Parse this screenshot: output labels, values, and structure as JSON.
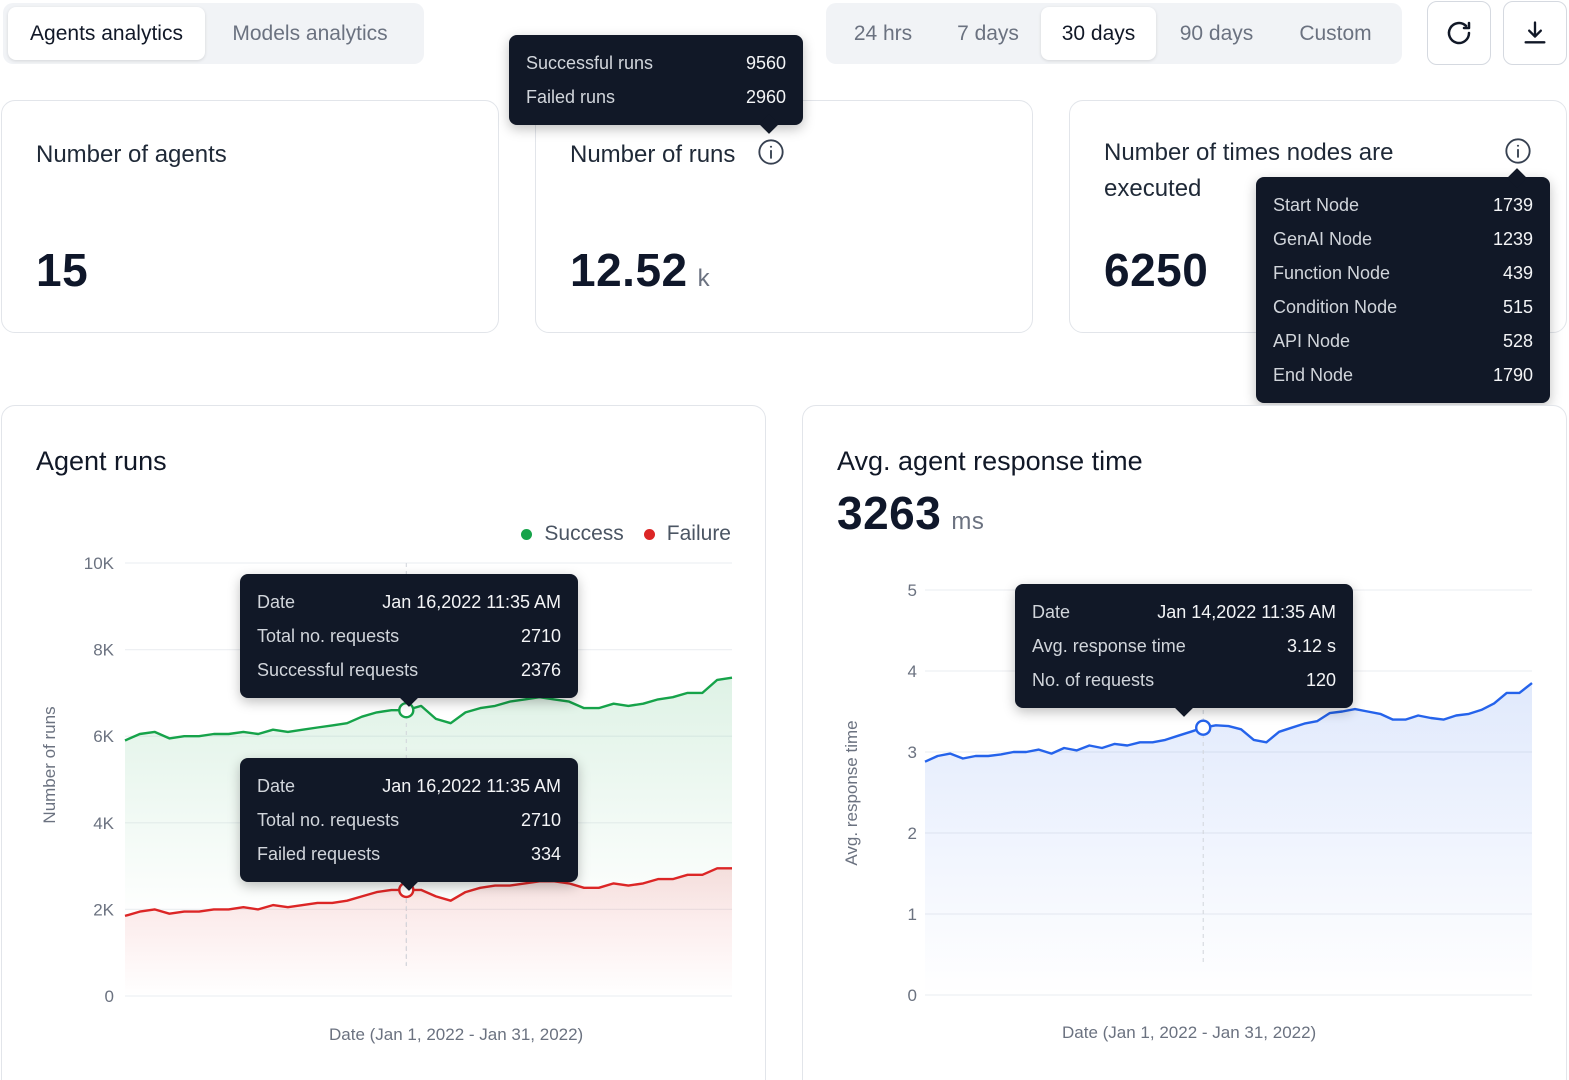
{
  "tabs": {
    "analytics": [
      {
        "label": "Agents analytics",
        "active": true
      },
      {
        "label": "Models analytics",
        "active": false
      }
    ],
    "ranges": [
      {
        "label": "24 hrs",
        "active": false
      },
      {
        "label": "7 days",
        "active": false
      },
      {
        "label": "30 days",
        "active": true
      },
      {
        "label": "90 days",
        "active": false
      },
      {
        "label": "Custom",
        "active": false
      }
    ]
  },
  "toolbar": {
    "refresh_icon": "refresh-icon",
    "download_icon": "download-icon"
  },
  "stats": {
    "agents": {
      "title": "Number of agents",
      "value": "15"
    },
    "runs": {
      "title": "Number of runs",
      "value": "12.52",
      "unit": "k",
      "tooltip": [
        {
          "label": "Successful runs",
          "value": "9560"
        },
        {
          "label": "Failed runs",
          "value": "2960"
        }
      ]
    },
    "nodes": {
      "title_line1": "Number of times nodes are",
      "title_line2": "executed",
      "value": "6250",
      "tooltip": [
        {
          "label": "Start Node",
          "value": "1739"
        },
        {
          "label": "GenAI Node",
          "value": "1239"
        },
        {
          "label": "Function Node",
          "value": "439"
        },
        {
          "label": "Condition Node",
          "value": "515"
        },
        {
          "label": "API Node",
          "value": "528"
        },
        {
          "label": "End Node",
          "value": "1790"
        }
      ]
    }
  },
  "agent_runs": {
    "title": "Agent runs",
    "legend": [
      {
        "label": "Success",
        "color": "#16a34a"
      },
      {
        "label": "Failure",
        "color": "#dc2626"
      }
    ],
    "tooltip_success": [
      {
        "label": "Date",
        "value": "Jan 16,2022 11:35 AM"
      },
      {
        "label": "Total no. requests",
        "value": "2710"
      },
      {
        "label": "Successful requests",
        "value": "2376"
      }
    ],
    "tooltip_failure": [
      {
        "label": "Date",
        "value": "Jan 16,2022 11:35 AM"
      },
      {
        "label": "Total no. requests",
        "value": "2710"
      },
      {
        "label": "Failed requests",
        "value": "334"
      }
    ]
  },
  "response_time": {
    "title": "Avg. agent response time",
    "value": "3263",
    "unit": "ms",
    "tooltip": [
      {
        "label": "Date",
        "value": "Jan 14,2022 11:35 AM"
      },
      {
        "label": "Avg. response time",
        "value": "3.12 s"
      },
      {
        "label": "No. of requests",
        "value": "120"
      }
    ]
  },
  "chart_data": [
    {
      "type": "area",
      "title": "Agent runs",
      "xlabel": "Date (Jan 1, 2022 - Jan 31, 2022)",
      "ylabel": "Number of runs",
      "ylim": [
        0,
        10000
      ],
      "yticks": [
        "0",
        "2K",
        "4K",
        "6K",
        "8K",
        "10K"
      ],
      "ytick_values": [
        0,
        2000,
        4000,
        6000,
        8000,
        10000
      ],
      "highlight_index": 19,
      "series": [
        {
          "name": "Success",
          "color": "#16a34a",
          "values": [
            5900,
            6050,
            6100,
            5950,
            6000,
            6000,
            6050,
            6050,
            6100,
            6050,
            6150,
            6100,
            6150,
            6200,
            6250,
            6300,
            6450,
            6550,
            6600,
            6600,
            6700,
            6400,
            6300,
            6550,
            6650,
            6700,
            6800,
            6850,
            6900,
            6850,
            6800,
            6650,
            6650,
            6750,
            6700,
            6750,
            6850,
            6900,
            7000,
            7000,
            7300,
            7350
          ]
        },
        {
          "name": "Failure",
          "color": "#dc2626",
          "values": [
            1850,
            1950,
            2000,
            1900,
            1950,
            1950,
            2000,
            2000,
            2050,
            2000,
            2100,
            2050,
            2100,
            2150,
            2150,
            2200,
            2300,
            2400,
            2450,
            2450,
            2450,
            2300,
            2200,
            2400,
            2500,
            2550,
            2550,
            2600,
            2650,
            2650,
            2600,
            2500,
            2500,
            2600,
            2550,
            2600,
            2700,
            2700,
            2800,
            2800,
            2950,
            2950
          ]
        }
      ]
    },
    {
      "type": "area",
      "title": "Avg. agent response time",
      "xlabel": "Date (Jan 1, 2022 - Jan 31, 2022)",
      "ylabel": "Avg. response time",
      "ylim": [
        0,
        5
      ],
      "yticks": [
        "0",
        "1",
        "2",
        "3",
        "4",
        "5"
      ],
      "ytick_values": [
        0,
        1,
        2,
        3,
        4,
        5
      ],
      "highlight_index": 22,
      "series": [
        {
          "name": "Avg. response time",
          "color": "#2563eb",
          "values": [
            2.88,
            2.95,
            2.98,
            2.92,
            2.95,
            2.95,
            2.97,
            3.0,
            3.0,
            3.03,
            2.98,
            3.05,
            3.02,
            3.08,
            3.05,
            3.1,
            3.08,
            3.12,
            3.12,
            3.15,
            3.2,
            3.25,
            3.3,
            3.33,
            3.32,
            3.28,
            3.15,
            3.12,
            3.25,
            3.3,
            3.35,
            3.38,
            3.48,
            3.5,
            3.53,
            3.5,
            3.47,
            3.4,
            3.4,
            3.45,
            3.42,
            3.4,
            3.45,
            3.47,
            3.52,
            3.6,
            3.73,
            3.73,
            3.85
          ]
        }
      ]
    }
  ]
}
